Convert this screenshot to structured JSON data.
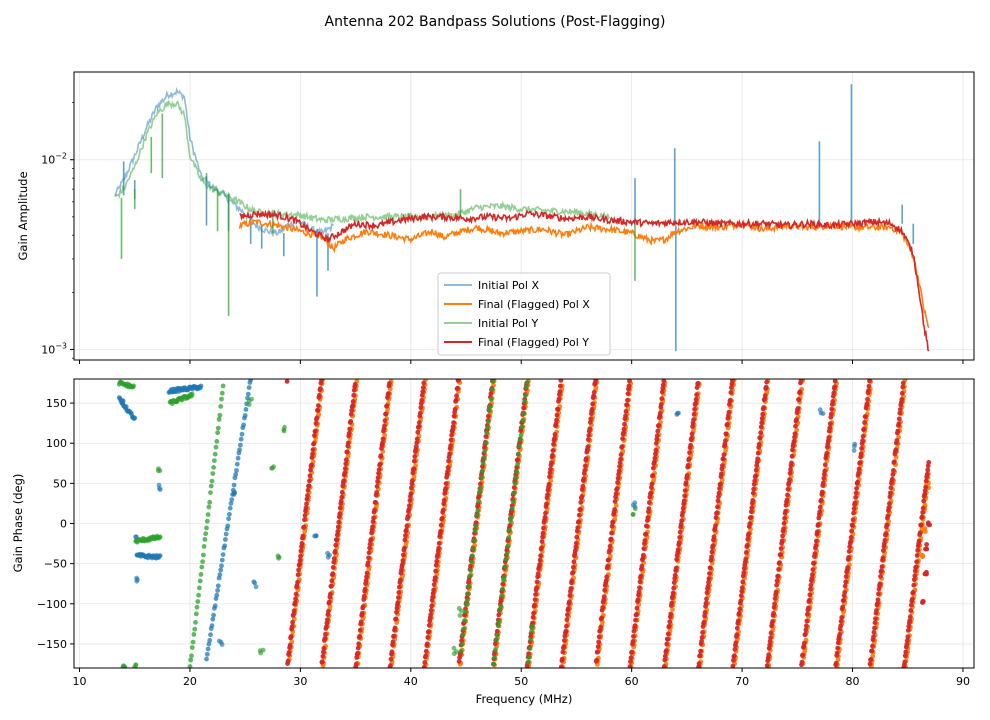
{
  "figure": {
    "title": "Antenna 202 Bandpass Solutions (Post-Flagging)"
  },
  "colors": {
    "pol_x": "#1f77b4",
    "final_x": "#ff7f0e",
    "pol_y": "#2ca02c",
    "final_y": "#d62728",
    "grid": "#e6e6e6",
    "legend_border": "#cccccc"
  },
  "chart_data": [
    {
      "type": "line",
      "yscale": "log",
      "title": "",
      "xlabel": "",
      "ylabel": "Gain Amplitude",
      "xlim": [
        9.5,
        91
      ],
      "ylim": [
        0.00088,
        0.029
      ],
      "grid": true,
      "legend_position": "lower-center",
      "x_ticks": [
        10,
        20,
        30,
        40,
        50,
        60,
        70,
        80,
        90
      ],
      "y_ticks": [
        {
          "value": 0.001,
          "base": "10",
          "exp": "−3"
        },
        {
          "value": 0.01,
          "base": "10",
          "exp": "−2"
        }
      ],
      "legend": [
        "Initial Pol X",
        "Final (Flagged) Pol X",
        "Initial Pol Y",
        "Final (Flagged) Pol Y"
      ],
      "series": [
        {
          "name": "Initial Pol X",
          "color": "#1f77b4",
          "alpha": 0.5,
          "points": [
            [
              13.2,
              0.0065
            ],
            [
              14,
              0.0078
            ],
            [
              15,
              0.0105
            ],
            [
              16,
              0.0145
            ],
            [
              17,
              0.019
            ],
            [
              18,
              0.022
            ],
            [
              18.8,
              0.0228
            ],
            [
              19.5,
              0.0215
            ],
            [
              20,
              0.013
            ],
            [
              21,
              0.0082
            ],
            [
              22,
              0.0072
            ],
            [
              23,
              0.0066
            ],
            [
              24,
              0.0058
            ],
            [
              25,
              0.0052
            ],
            [
              26,
              0.0045
            ],
            [
              27,
              0.0042
            ],
            [
              28,
              0.0041
            ],
            [
              29,
              0.0046
            ],
            [
              30,
              0.0047
            ],
            [
              31,
              0.0043
            ],
            [
              32,
              0.0041
            ],
            [
              33,
              0.0045
            ]
          ],
          "spikes": [
            [
              14,
              0.0098
            ],
            [
              15,
              0.0062
            ],
            [
              21.5,
              0.0045
            ],
            [
              23.5,
              0.0042
            ],
            [
              25.5,
              0.0036
            ],
            [
              26.5,
              0.0034
            ],
            [
              28.5,
              0.0031
            ],
            [
              31.5,
              0.0019
            ],
            [
              32.5,
              0.0026
            ],
            [
              60.3,
              0.008
            ],
            [
              63.9,
              0.0115
            ],
            [
              64,
              0.00098
            ],
            [
              77,
              0.0125
            ],
            [
              79.9,
              0.025
            ],
            [
              84.5,
              0.0058
            ],
            [
              85.5,
              0.0036
            ]
          ]
        },
        {
          "name": "Final (Flagged) Pol X",
          "color": "#ff7f0e",
          "alpha": 1.0,
          "points": [
            [
              24.5,
              0.0045
            ],
            [
              26,
              0.0047
            ],
            [
              28,
              0.0045
            ],
            [
              30,
              0.0042
            ],
            [
              32,
              0.0039
            ],
            [
              33,
              0.0034
            ],
            [
              34,
              0.0038
            ],
            [
              36,
              0.0042
            ],
            [
              38,
              0.004
            ],
            [
              40,
              0.0038
            ],
            [
              42,
              0.0042
            ],
            [
              43,
              0.0039
            ],
            [
              44,
              0.0041
            ],
            [
              46,
              0.0044
            ],
            [
              48,
              0.0041
            ],
            [
              50,
              0.0042
            ],
            [
              52,
              0.0043
            ],
            [
              54,
              0.004
            ],
            [
              56,
              0.0044
            ],
            [
              58,
              0.0043
            ],
            [
              60,
              0.0041
            ],
            [
              62,
              0.0037
            ],
            [
              63,
              0.0038
            ],
            [
              64,
              0.0042
            ],
            [
              66,
              0.0045
            ],
            [
              68,
              0.0044
            ],
            [
              70,
              0.0046
            ],
            [
              72,
              0.0043
            ],
            [
              74,
              0.0045
            ],
            [
              76,
              0.0044
            ],
            [
              78,
              0.0045
            ],
            [
              80,
              0.0044
            ],
            [
              82,
              0.0044
            ],
            [
              83.5,
              0.0044
            ],
            [
              84.5,
              0.0041
            ],
            [
              85.5,
              0.0031
            ],
            [
              86,
              0.0023
            ],
            [
              86.5,
              0.0016
            ],
            [
              86.9,
              0.0013
            ]
          ]
        },
        {
          "name": "Initial Pol Y",
          "color": "#2ca02c",
          "alpha": 0.5,
          "points": [
            [
              13.2,
              0.0063
            ],
            [
              14,
              0.007
            ],
            [
              15,
              0.0092
            ],
            [
              16,
              0.0132
            ],
            [
              17,
              0.0175
            ],
            [
              18,
              0.0198
            ],
            [
              18.8,
              0.0198
            ],
            [
              19.5,
              0.0172
            ],
            [
              20,
              0.0105
            ],
            [
              21,
              0.0078
            ],
            [
              22,
              0.007
            ],
            [
              23,
              0.0066
            ],
            [
              24,
              0.0062
            ],
            [
              25,
              0.0057
            ],
            [
              26,
              0.0053
            ],
            [
              28,
              0.0052
            ],
            [
              30,
              0.0051
            ],
            [
              32,
              0.0048
            ],
            [
              34,
              0.0049
            ],
            [
              36,
              0.005
            ],
            [
              40,
              0.005
            ],
            [
              44,
              0.0051
            ],
            [
              46,
              0.0056
            ],
            [
              48,
              0.0057
            ],
            [
              50,
              0.0055
            ],
            [
              52,
              0.0054
            ],
            [
              55,
              0.0053
            ],
            [
              58,
              0.005
            ]
          ],
          "spikes": [
            [
              13.8,
              0.003
            ],
            [
              15,
              0.0055
            ],
            [
              16.5,
              0.0085
            ],
            [
              17.5,
              0.008
            ],
            [
              21.5,
              0.0085
            ],
            [
              22.5,
              0.0042
            ],
            [
              23.5,
              0.0015
            ],
            [
              27.5,
              0.0041
            ],
            [
              44.5,
              0.007
            ],
            [
              60.3,
              0.0023
            ]
          ]
        },
        {
          "name": "Final (Flagged) Pol Y",
          "color": "#d62728",
          "alpha": 1.0,
          "points": [
            [
              24.5,
              0.005
            ],
            [
              26,
              0.0052
            ],
            [
              28,
              0.0051
            ],
            [
              29.5,
              0.0048
            ],
            [
              31,
              0.0042
            ],
            [
              32.5,
              0.0038
            ],
            [
              33.5,
              0.0041
            ],
            [
              35,
              0.0046
            ],
            [
              37,
              0.0045
            ],
            [
              39,
              0.0048
            ],
            [
              41,
              0.005
            ],
            [
              43,
              0.005
            ],
            [
              45,
              0.0049
            ],
            [
              47,
              0.005
            ],
            [
              49,
              0.0049
            ],
            [
              50.5,
              0.0052
            ],
            [
              52,
              0.0051
            ],
            [
              54,
              0.0049
            ],
            [
              56,
              0.005
            ],
            [
              58,
              0.0048
            ],
            [
              60,
              0.0047
            ],
            [
              62,
              0.0046
            ],
            [
              64,
              0.0047
            ],
            [
              66,
              0.0047
            ],
            [
              68,
              0.0046
            ],
            [
              70,
              0.0046
            ],
            [
              72,
              0.0046
            ],
            [
              74,
              0.0045
            ],
            [
              76,
              0.0046
            ],
            [
              78,
              0.0045
            ],
            [
              80,
              0.0046
            ],
            [
              82,
              0.0047
            ],
            [
              83.5,
              0.0046
            ],
            [
              84.5,
              0.0042
            ],
            [
              85.5,
              0.0032
            ],
            [
              86,
              0.0021
            ],
            [
              86.5,
              0.0013
            ],
            [
              86.9,
              0.00098
            ]
          ]
        }
      ]
    },
    {
      "type": "scatter",
      "title": "",
      "xlabel": "Frequency (MHz)",
      "ylabel": "Gain Phase (deg)",
      "xlim": [
        9.5,
        91
      ],
      "ylim": [
        -180,
        180
      ],
      "grid": true,
      "x_ticks": [
        10,
        20,
        30,
        40,
        50,
        60,
        70,
        80,
        90
      ],
      "y_ticks": [
        -150,
        -100,
        -50,
        0,
        50,
        100,
        150
      ],
      "phase_model": {
        "wrap_slope_deg_per_mhz": 116,
        "x_start": 28.8,
        "x_end": 86.9,
        "green_start_at_minus180": 19.8,
        "blue_start_at_minus180": 21.4
      },
      "series": [
        {
          "name": "Initial Pol X",
          "color": "#1f77b4",
          "segments": [
            [
              13.6,
              15.0,
              155,
              130
            ],
            [
              15.2,
              17.3,
              -40,
              -42
            ],
            [
              18.1,
              21.0,
              165,
              170
            ],
            [
              21.5,
              25.5,
              -170,
              180
            ]
          ],
          "clusters": [
            [
              13.8,
              155
            ],
            [
              14.0,
              -180
            ],
            [
              15.0,
              -20
            ],
            [
              15.1,
              -70
            ],
            [
              17.2,
              44
            ],
            [
              22.8,
              -150
            ],
            [
              23.9,
              40
            ],
            [
              25.9,
              -75
            ],
            [
              31.3,
              -12
            ],
            [
              32.5,
              -40
            ],
            [
              60.2,
              25
            ],
            [
              64.2,
              140
            ],
            [
              77.2,
              140
            ],
            [
              80.1,
              95
            ]
          ]
        },
        {
          "name": "Final (Flagged) Pol X",
          "color": "#ff7f0e",
          "x_start": 29.0,
          "x_end": 86.9,
          "end_cluster": [
            [
              86.8,
              48
            ],
            [
              86.6,
              20
            ],
            [
              86.5,
              -10
            ],
            [
              86.3,
              -40
            ]
          ]
        },
        {
          "name": "Initial Pol Y",
          "color": "#2ca02c",
          "segments": [
            [
              13.6,
              14.9,
              175,
              170
            ],
            [
              15.1,
              17.3,
              -22,
              -17
            ],
            [
              18.2,
              20.2,
              150,
              160
            ],
            [
              20.0,
              23.0,
              -180,
              170
            ]
          ],
          "clusters": [
            [
              14.0,
              -180
            ],
            [
              15.1,
              -180
            ],
            [
              17.2,
              64
            ],
            [
              25.5,
              150
            ],
            [
              26.5,
              -160
            ],
            [
              27.5,
              70
            ],
            [
              28.0,
              -40
            ],
            [
              28.5,
              120
            ],
            [
              44.0,
              -160
            ],
            [
              44.5,
              -110
            ],
            [
              60.2,
              15
            ]
          ]
        },
        {
          "name": "Final (Flagged) Pol Y",
          "color": "#d62728",
          "x_start": 28.8,
          "x_end": 86.9,
          "end_cluster": [
            [
              86.9,
              0
            ],
            [
              86.7,
              -30
            ],
            [
              86.6,
              -60
            ],
            [
              86.4,
              -100
            ]
          ]
        }
      ]
    }
  ]
}
